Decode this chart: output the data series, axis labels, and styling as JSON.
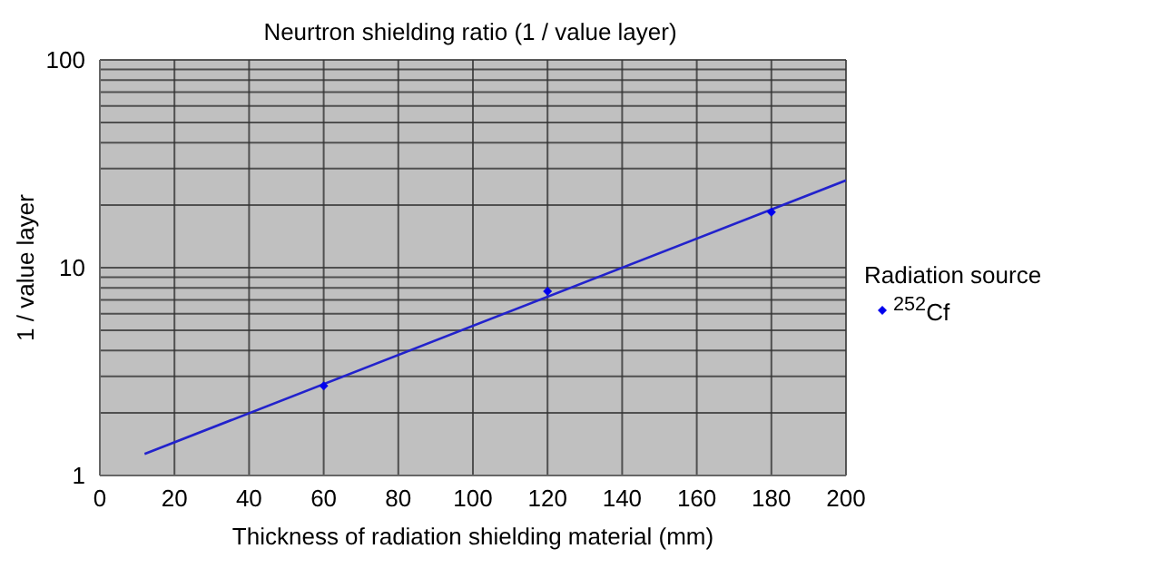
{
  "chart_data": {
    "type": "scatter",
    "title": "Neurtron shielding ratio (1 / value layer)",
    "xlabel": "Thickness of radiation shielding material (mm)",
    "ylabel": "1 / value layer",
    "legend_title": "Radiation source",
    "series": [
      {
        "name": "$^{252}$Cf",
        "color": "#0000ee",
        "marker": "diamond",
        "x": [
          60,
          120,
          180
        ],
        "values": [
          2.7,
          7.7,
          18.5
        ]
      },
      {
        "type": "line",
        "color": "#2222cc",
        "marker": "none",
        "x": [
          12,
          200
        ],
        "values": [
          1.27,
          26.3
        ]
      }
    ],
    "xlim": [
      0,
      200
    ],
    "xticks": [
      0,
      20,
      40,
      60,
      80,
      100,
      120,
      140,
      160,
      180,
      200
    ],
    "ylim": [
      1,
      100
    ],
    "yticks": [
      1,
      {
        "value": 2,
        "label": null
      },
      {
        "value": 3,
        "label": null
      },
      {
        "value": 4,
        "label": null
      },
      {
        "value": 5,
        "label": null
      },
      {
        "value": 6,
        "label": null
      },
      {
        "value": 7,
        "label": null
      },
      {
        "value": 8,
        "label": null
      },
      {
        "value": 9,
        "label": null
      },
      10,
      {
        "value": 20,
        "label": null
      },
      {
        "value": 30,
        "label": null
      },
      {
        "value": 40,
        "label": null
      },
      {
        "value": 50,
        "label": null
      },
      {
        "value": 60,
        "label": null
      },
      {
        "value": 70,
        "label": null
      },
      {
        "value": 80,
        "label": null
      },
      {
        "value": 90,
        "label": null
      },
      100
    ],
    "log": true,
    "grid": true,
    "legend": "right"
  }
}
